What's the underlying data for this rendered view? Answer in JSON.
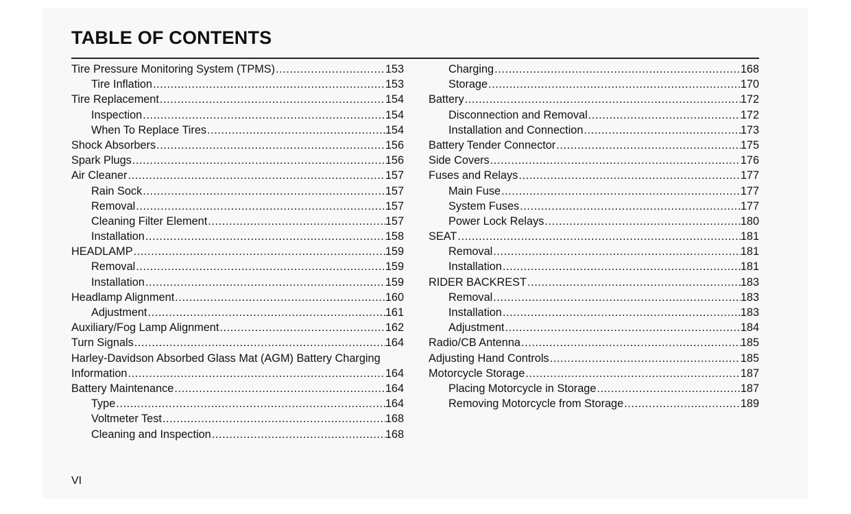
{
  "title": "TABLE OF CONTENTS",
  "page_number": "VI",
  "left": [
    {
      "title": "Tire Pressure Monitoring System (TPMS)",
      "page": "153",
      "indent": false
    },
    {
      "title": "Tire Inflation",
      "page": "153",
      "indent": true
    },
    {
      "title": "Tire Replacement",
      "page": "154",
      "indent": false
    },
    {
      "title": "Inspection",
      "page": "154",
      "indent": true
    },
    {
      "title": "When To Replace Tires",
      "page": "154",
      "indent": true
    },
    {
      "title": "Shock Absorbers",
      "page": "156",
      "indent": false
    },
    {
      "title": "Spark Plugs",
      "page": "156",
      "indent": false
    },
    {
      "title": "Air Cleaner",
      "page": "157",
      "indent": false
    },
    {
      "title": "Rain Sock",
      "page": "157",
      "indent": true
    },
    {
      "title": "Removal",
      "page": "157",
      "indent": true
    },
    {
      "title": "Cleaning Filter Element",
      "page": "157",
      "indent": true
    },
    {
      "title": "Installation",
      "page": "158",
      "indent": true
    },
    {
      "title": "HEADLAMP",
      "page": "159",
      "indent": false
    },
    {
      "title": "Removal",
      "page": "159",
      "indent": true
    },
    {
      "title": "Installation",
      "page": "159",
      "indent": true
    },
    {
      "title": "Headlamp Alignment",
      "page": "160",
      "indent": false
    },
    {
      "title": "Adjustment",
      "page": "161",
      "indent": true
    },
    {
      "title": "Auxiliary/Fog Lamp Alignment",
      "page": "162",
      "indent": false
    },
    {
      "title": "Turn Signals",
      "page": "164",
      "indent": false
    },
    {
      "title": "Harley-Davidson Absorbed Glass Mat (AGM) Battery Charging",
      "page": "",
      "indent": false
    },
    {
      "title": "Information",
      "page": "164",
      "indent": false
    },
    {
      "title": "Battery Maintenance",
      "page": "164",
      "indent": false
    },
    {
      "title": "Type",
      "page": "164",
      "indent": true
    },
    {
      "title": "Voltmeter Test",
      "page": "168",
      "indent": true
    },
    {
      "title": "Cleaning and Inspection",
      "page": "168",
      "indent": true
    }
  ],
  "right": [
    {
      "title": "Charging",
      "page": "168",
      "indent": true
    },
    {
      "title": "Storage",
      "page": "170",
      "indent": true
    },
    {
      "title": "Battery",
      "page": "172",
      "indent": false
    },
    {
      "title": "Disconnection and Removal",
      "page": "172",
      "indent": true
    },
    {
      "title": "Installation and Connection",
      "page": "173",
      "indent": true
    },
    {
      "title": "Battery Tender Connector",
      "page": "175",
      "indent": false
    },
    {
      "title": "Side Covers",
      "page": "176",
      "indent": false
    },
    {
      "title": "Fuses and Relays",
      "page": "177",
      "indent": false
    },
    {
      "title": "Main Fuse",
      "page": "177",
      "indent": true
    },
    {
      "title": "System Fuses",
      "page": "177",
      "indent": true
    },
    {
      "title": "Power Lock Relays",
      "page": "180",
      "indent": true
    },
    {
      "title": "SEAT",
      "page": "181",
      "indent": false
    },
    {
      "title": "Removal",
      "page": "181",
      "indent": true
    },
    {
      "title": "Installation",
      "page": "181",
      "indent": true
    },
    {
      "title": "RIDER BACKREST",
      "page": "183",
      "indent": false
    },
    {
      "title": "Removal",
      "page": "183",
      "indent": true
    },
    {
      "title": "Installation",
      "page": "183",
      "indent": true
    },
    {
      "title": "Adjustment",
      "page": "184",
      "indent": true
    },
    {
      "title": "Radio/CB Antenna",
      "page": "185",
      "indent": false
    },
    {
      "title": "Adjusting Hand Controls",
      "page": "185",
      "indent": false
    },
    {
      "title": "Motorcycle Storage",
      "page": "187",
      "indent": false
    },
    {
      "title": "Placing Motorcycle in Storage",
      "page": "187",
      "indent": true
    },
    {
      "title": "Removing Motorcycle from Storage",
      "page": "189",
      "indent": true
    }
  ]
}
